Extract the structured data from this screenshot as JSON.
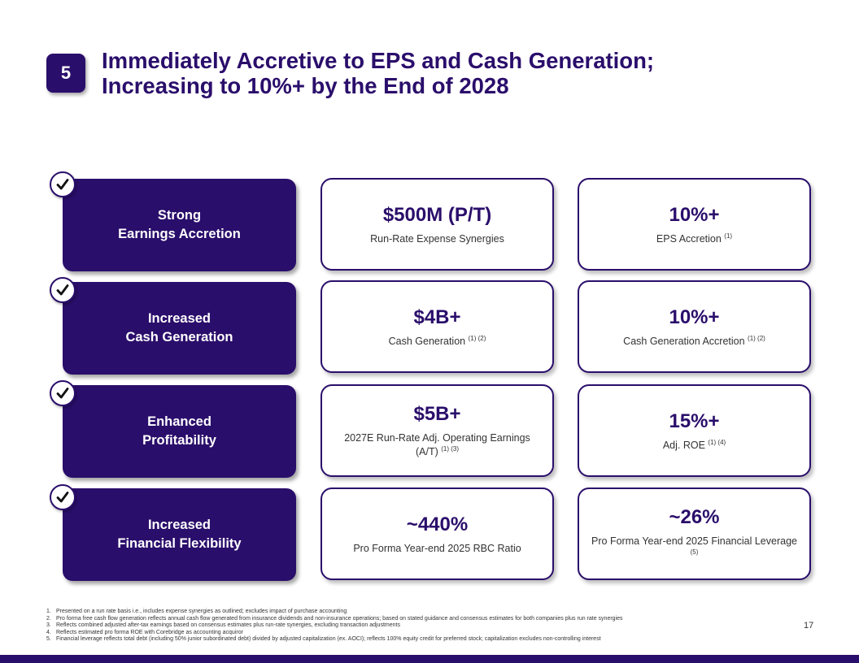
{
  "slide": {
    "badge": "5",
    "title_line1": "Immediately Accretive to EPS and Cash Generation;",
    "title_line2": "Increasing to 10%+ by the End of 2028",
    "page_number": "17"
  },
  "rows": [
    {
      "pill_line1": "Strong",
      "pill_line2": "Earnings Accretion",
      "card1": {
        "value": "$500M (P/T)",
        "desc": "Run-Rate Expense Synergies",
        "fn": ""
      },
      "card2": {
        "value": "10%+",
        "desc": "EPS Accretion",
        "fn": "(1)"
      }
    },
    {
      "pill_line1": "Increased",
      "pill_line2": "Cash Generation",
      "card1": {
        "value": "$4B+",
        "desc": "Cash Generation",
        "fn": "(1) (2)"
      },
      "card2": {
        "value": "10%+",
        "desc": "Cash Generation Accretion",
        "fn": "(1) (2)"
      }
    },
    {
      "pill_line1": "Enhanced",
      "pill_line2": "Profitability",
      "card1": {
        "value": "$5B+",
        "desc": "2027E Run-Rate Adj. Operating Earnings (A/T)",
        "fn": "(1) (3)"
      },
      "card2": {
        "value": "15%+",
        "desc": "Adj. ROE",
        "fn": "(1) (4)"
      }
    },
    {
      "pill_line1": "Increased",
      "pill_line2": "Financial Flexibility",
      "card1": {
        "value": "~440%",
        "desc": "Pro Forma Year-end 2025 RBC Ratio",
        "fn": ""
      },
      "card2": {
        "value": "~26%",
        "desc": "Pro Forma Year-end 2025 Financial Leverage",
        "fn": "(5)"
      }
    }
  ],
  "footnotes": [
    {
      "num": "1.",
      "text": "Presented on a run rate basis i.e., includes expense synergies as outlined; excludes impact of purchase accounting"
    },
    {
      "num": "2.",
      "text": "Pro forma free cash flow generation reflects annual cash flow generated from insurance dividends and non-insurance operations; based on stated guidance and consensus estimates for both companies plus run rate synergies"
    },
    {
      "num": "3.",
      "text": "Reflects combined adjusted after-tax earnings based on consensus estimates plus run-rate synergies, excluding transaction adjustments"
    },
    {
      "num": "4.",
      "text": "Reflects estimated pro forma ROE with Corebridge as accounting acquiror"
    },
    {
      "num": "5.",
      "text": "Financial leverage reflects total debt (including 50% junior subordinated debt) divided by adjusted capitalization (ex. AOCI); reflects 100% equity credit for preferred stock; capitalization excludes non-controlling interest"
    }
  ],
  "colors": {
    "brand": "#2a0e6b"
  }
}
